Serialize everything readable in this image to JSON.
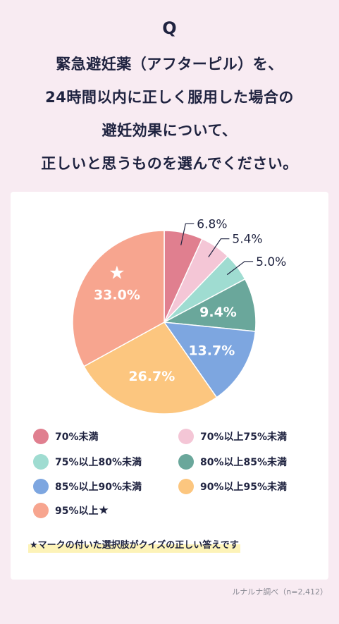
{
  "header": {
    "q_mark": "Q",
    "question_lines": [
      "緊急避妊薬（アフターピル）を、",
      "24時間以内に正しく服用した場合の",
      "避妊効果について、",
      "正しいと思うものを選んでください。"
    ]
  },
  "chart_data": {
    "type": "pie",
    "start_angle_deg": 0,
    "direction": "clockwise",
    "slices": [
      {
        "label": "70%未満",
        "value": 6.8,
        "display": "6.8%",
        "color": "#e07f8f",
        "label_pos": "outside",
        "star": false
      },
      {
        "label": "70%以上75%未満",
        "value": 5.4,
        "display": "5.4%",
        "color": "#f4c6d6",
        "label_pos": "outside",
        "star": false
      },
      {
        "label": "75%以上80%未満",
        "value": 5.0,
        "display": "5.0%",
        "color": "#9fdcd1",
        "label_pos": "outside",
        "star": false
      },
      {
        "label": "80%以上85%未満",
        "value": 9.4,
        "display": "9.4%",
        "color": "#6aa79b",
        "label_pos": "inside",
        "star": false
      },
      {
        "label": "85%以上90%未満",
        "value": 13.7,
        "display": "13.7%",
        "color": "#7da6e0",
        "label_pos": "inside",
        "star": false
      },
      {
        "label": "90%以上95%未満",
        "value": 26.7,
        "display": "26.7%",
        "color": "#fcc67f",
        "label_pos": "inside",
        "star": false
      },
      {
        "label": "95%以上",
        "value": 33.0,
        "display": "33.0%",
        "color": "#f7a58f",
        "label_pos": "inside",
        "star": true
      }
    ]
  },
  "legend": {
    "items": [
      {
        "label": "70%未満",
        "color": "#e07f8f",
        "star": ""
      },
      {
        "label": "70%以上75%未満",
        "color": "#f4c6d6",
        "star": ""
      },
      {
        "label": "75%以上80%未満",
        "color": "#9fdcd1",
        "star": ""
      },
      {
        "label": "80%以上85%未満",
        "color": "#6aa79b",
        "star": ""
      },
      {
        "label": "85%以上90%未満",
        "color": "#7da6e0",
        "star": ""
      },
      {
        "label": "90%以上95%未満",
        "color": "#fcc67f",
        "star": ""
      },
      {
        "label": "95%以上",
        "color": "#f7a58f",
        "star": "★"
      }
    ]
  },
  "note": "★マークの付いた選択肢がクイズの正しい答えです",
  "source": "ルナルナ調べ（n=2,412）",
  "colors": {
    "background": "#f8ebf2",
    "card": "#ffffff",
    "text": "#1f2340",
    "note_highlight": "#fdf3b8"
  }
}
